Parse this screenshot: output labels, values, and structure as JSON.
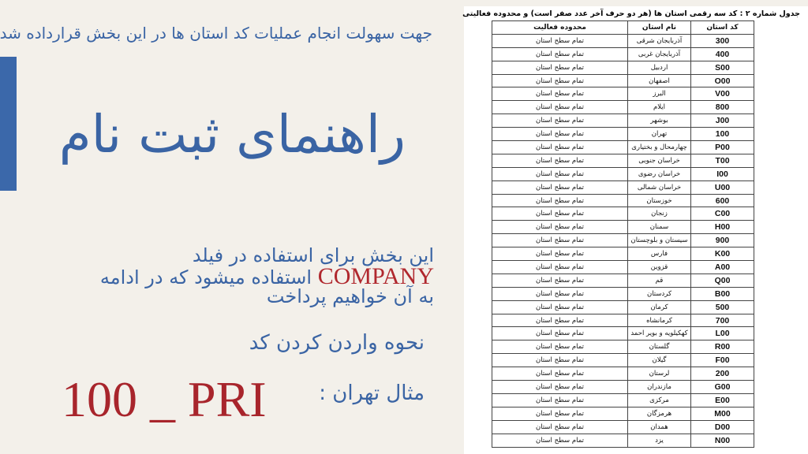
{
  "slide": {
    "intro": "جهت سهولت انجام عملیات کد استان ها در این بخش قرارداده شد",
    "title": "راهنمای ثبت نام",
    "line1": "این بخش برای استفاده در فیلد",
    "line2_company": "COMPANY",
    "line2_rest": "استفاده میشود که در ادامه",
    "line3": "به آن خواهیم پرداخت",
    "howto": "نحوه واردن کردن کد",
    "example_label": "مثال تهران :",
    "example_code": "100 _ PRI",
    "colors": {
      "blue": "#3a64a4",
      "red": "#a8252c",
      "background": "#f3f0ea"
    }
  },
  "table": {
    "caption": "جدول شماره ۲ : کد سه رقمی استان ها (هر دو حرف آخر عدد صفر است) و محدوده فعالیتی",
    "headers": [
      "کد استان",
      "نام استان",
      "محدوده فعالیت"
    ],
    "rows": [
      [
        "300",
        "آذربایجان شرقی",
        "تمام سطح استان"
      ],
      [
        "400",
        "آذربایجان غربی",
        "تمام سطح استان"
      ],
      [
        "S00",
        "اردبیل",
        "تمام سطح استان"
      ],
      [
        "O00",
        "اصفهان",
        "تمام سطح استان"
      ],
      [
        "V00",
        "البرز",
        "تمام سطح استان"
      ],
      [
        "800",
        "ایلام",
        "تمام سطح استان"
      ],
      [
        "J00",
        "بوشهر",
        "تمام سطح استان"
      ],
      [
        "100",
        "تهران",
        "تمام سطح استان"
      ],
      [
        "P00",
        "چهارمحال و بختیاری",
        "تمام سطح استان"
      ],
      [
        "T00",
        "خراسان جنوبی",
        "تمام سطح استان"
      ],
      [
        "I00",
        "خراسان رضوی",
        "تمام سطح استان"
      ],
      [
        "U00",
        "خراسان شمالی",
        "تمام سطح استان"
      ],
      [
        "600",
        "خوزستان",
        "تمام سطح استان"
      ],
      [
        "C00",
        "زنجان",
        "تمام سطح استان"
      ],
      [
        "H00",
        "سمنان",
        "تمام سطح استان"
      ],
      [
        "900",
        "سیستان و بلوچستان",
        "تمام سطح استان"
      ],
      [
        "K00",
        "فارس",
        "تمام سطح استان"
      ],
      [
        "A00",
        "قزوین",
        "تمام سطح استان"
      ],
      [
        "Q00",
        "قم",
        "تمام سطح استان"
      ],
      [
        "B00",
        "کردستان",
        "تمام سطح استان"
      ],
      [
        "500",
        "کرمان",
        "تمام سطح استان"
      ],
      [
        "700",
        "کرمانشاه",
        "تمام سطح استان"
      ],
      [
        "L00",
        "کهکیلویه و بویر احمد",
        "تمام سطح استان"
      ],
      [
        "R00",
        "گلستان",
        "تمام سطح استان"
      ],
      [
        "F00",
        "گیلان",
        "تمام سطح استان"
      ],
      [
        "200",
        "لرستان",
        "تمام سطح استان"
      ],
      [
        "G00",
        "مازندران",
        "تمام سطح استان"
      ],
      [
        "E00",
        "مرکزی",
        "تمام سطح استان"
      ],
      [
        "M00",
        "هرمزگان",
        "تمام سطح استان"
      ],
      [
        "D00",
        "همدان",
        "تمام سطح استان"
      ],
      [
        "N00",
        "یزد",
        "تمام سطح استان"
      ]
    ]
  }
}
